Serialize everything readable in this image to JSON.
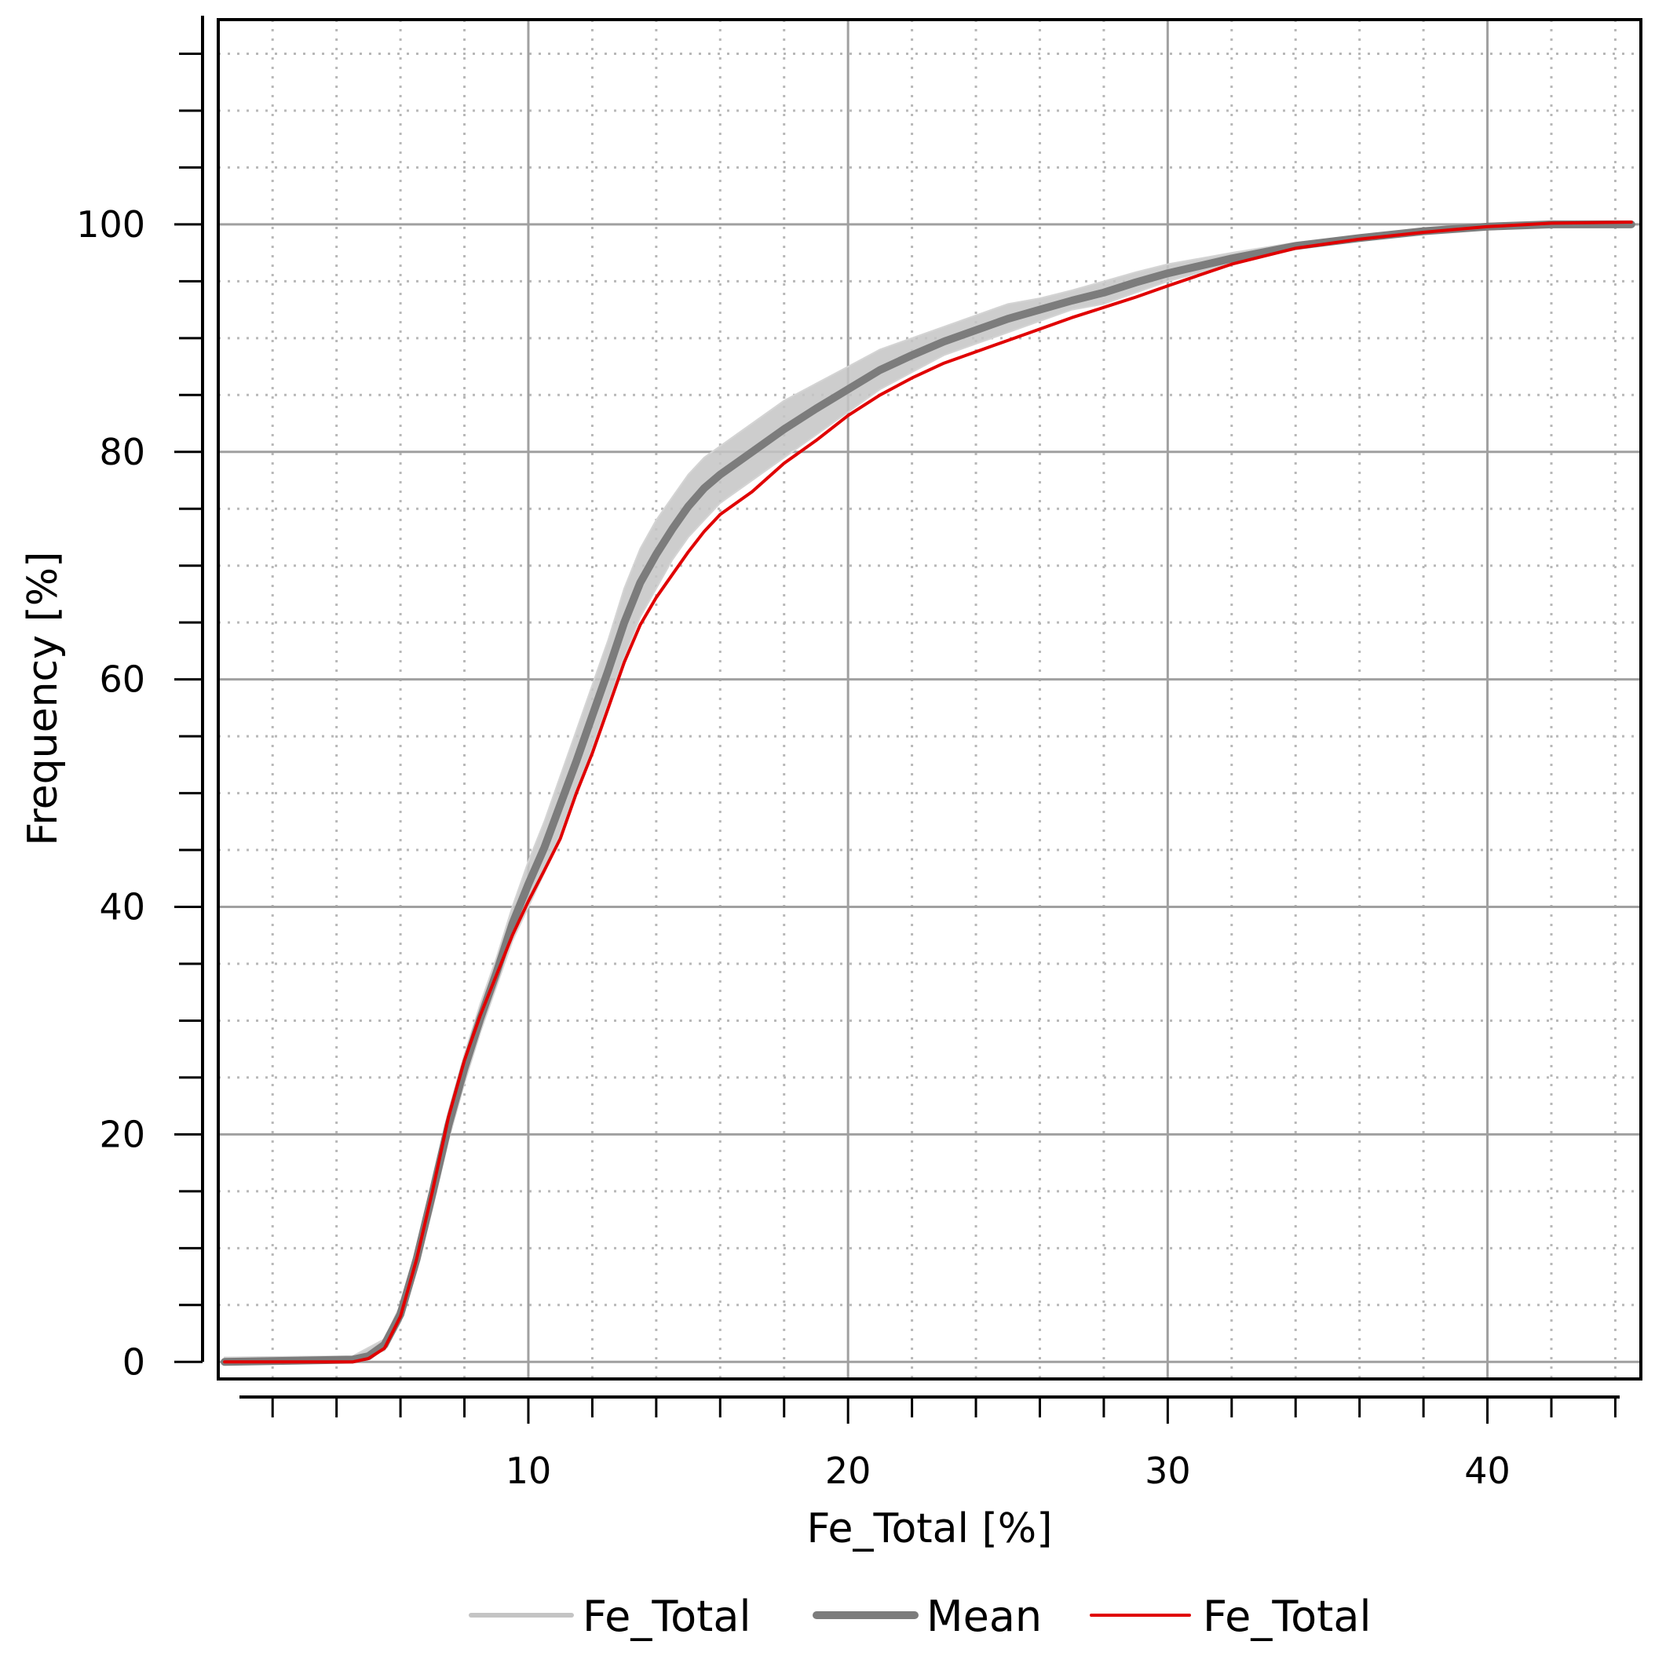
{
  "chart_data": {
    "type": "line",
    "title": "",
    "xlabel": "Fe_Total [%]",
    "ylabel": "Frequency [%]",
    "xlim": [
      0.3,
      44.8
    ],
    "ylim": [
      -1.5,
      118
    ],
    "x_ticks": [
      10,
      20,
      30,
      40
    ],
    "x_tick_labels": [
      "10",
      "20",
      "30",
      "40"
    ],
    "x_minor_step": 2,
    "y_ticks": [
      0,
      20,
      40,
      60,
      80,
      100
    ],
    "y_tick_labels": [
      "0",
      "20",
      "40",
      "60",
      "80",
      "100"
    ],
    "y_minor_step": 5,
    "grid": true,
    "legend_position": "bottom",
    "colors": {
      "band": "#c4c4c4",
      "mean": "#7c7c7c",
      "observed": "#e00000",
      "grid_major": "#a0a0a0",
      "grid_minor": "#b8b8b8",
      "axis": "#000000"
    },
    "series": [
      {
        "name": "Fe_Total",
        "role": "simulated-band",
        "x": [
          0.5,
          4.5,
          5.5,
          6.0,
          6.5,
          7.0,
          7.5,
          8.0,
          8.5,
          9.0,
          9.5,
          10.0,
          10.5,
          11.0,
          11.5,
          12.0,
          12.5,
          13.0,
          13.5,
          14.0,
          14.5,
          15.0,
          15.5,
          16.0,
          16.5,
          17.0,
          18.0,
          19.0,
          20.0,
          21.0,
          22.0,
          23.0,
          24.0,
          25.0,
          26.0,
          27.0,
          28.0,
          29.0,
          30.0,
          32.0,
          34.0,
          36.0,
          38.0,
          40.0,
          42.0,
          44.5
        ],
        "lower": [
          0.0,
          0.1,
          1.0,
          3.5,
          8.0,
          13.5,
          19.5,
          24.5,
          29.0,
          33.0,
          37.0,
          40.0,
          43.0,
          46.5,
          50.0,
          54.0,
          58.0,
          62.0,
          65.5,
          68.0,
          70.5,
          72.5,
          74.0,
          75.5,
          76.5,
          77.5,
          79.5,
          81.5,
          83.5,
          85.5,
          87.0,
          88.5,
          89.5,
          90.5,
          91.5,
          92.5,
          93.0,
          94.0,
          95.0,
          96.5,
          97.8,
          98.6,
          99.2,
          99.7,
          100.0,
          100.0
        ],
        "upper": [
          0.4,
          0.5,
          2.0,
          5.0,
          10.0,
          16.0,
          22.0,
          27.0,
          31.5,
          35.5,
          40.0,
          44.0,
          47.5,
          51.5,
          55.5,
          59.5,
          63.5,
          68.0,
          71.5,
          74.0,
          76.0,
          78.0,
          79.5,
          80.5,
          81.5,
          82.5,
          84.5,
          86.0,
          87.5,
          89.0,
          90.0,
          91.0,
          92.0,
          93.0,
          93.5,
          94.2,
          95.0,
          95.8,
          96.5,
          97.5,
          98.4,
          99.0,
          99.5,
          99.9,
          100.0,
          100.0
        ]
      },
      {
        "name": "Mean",
        "role": "mean",
        "x": [
          0.5,
          4.5,
          5.0,
          5.5,
          6.0,
          6.5,
          7.0,
          7.5,
          8.0,
          8.5,
          9.0,
          9.5,
          10.0,
          10.5,
          11.0,
          11.5,
          12.0,
          12.5,
          13.0,
          13.5,
          14.0,
          14.5,
          15.0,
          15.5,
          16.0,
          16.5,
          17.0,
          18.0,
          19.0,
          20.0,
          21.0,
          22.0,
          23.0,
          24.0,
          25.0,
          26.0,
          27.0,
          28.0,
          29.0,
          30.0,
          32.0,
          34.0,
          36.0,
          38.0,
          40.0,
          42.0,
          44.5
        ],
        "y": [
          0.0,
          0.2,
          0.5,
          1.5,
          4.2,
          9.0,
          14.8,
          20.8,
          25.8,
          30.2,
          34.2,
          38.5,
          42.0,
          45.2,
          49.0,
          52.8,
          56.8,
          60.8,
          65.0,
          68.5,
          71.0,
          73.2,
          75.2,
          76.8,
          78.0,
          79.0,
          80.0,
          82.0,
          83.8,
          85.5,
          87.2,
          88.5,
          89.7,
          90.7,
          91.7,
          92.5,
          93.3,
          94.0,
          94.9,
          95.7,
          97.0,
          98.1,
          98.8,
          99.4,
          99.8,
          100.0,
          100.0
        ]
      },
      {
        "name": "Fe_Total",
        "role": "observed",
        "x": [
          0.5,
          4.5,
          5.0,
          5.5,
          6.0,
          6.5,
          7.0,
          7.5,
          8.0,
          8.5,
          9.0,
          9.5,
          10.0,
          10.5,
          11.0,
          11.5,
          12.0,
          12.5,
          13.0,
          13.5,
          14.0,
          14.5,
          15.0,
          15.5,
          16.0,
          16.5,
          17.0,
          18.0,
          19.0,
          20.0,
          21.0,
          22.0,
          23.0,
          24.0,
          25.0,
          26.0,
          27.0,
          28.0,
          29.0,
          30.0,
          32.0,
          34.0,
          36.0,
          38.0,
          40.0,
          42.0,
          44.5
        ],
        "y": [
          0.0,
          0.0,
          0.3,
          1.2,
          4.0,
          9.0,
          15.0,
          21.5,
          26.5,
          30.5,
          34.0,
          37.5,
          40.5,
          43.2,
          46.0,
          50.0,
          53.5,
          57.5,
          61.5,
          64.8,
          67.2,
          69.2,
          71.2,
          73.0,
          74.5,
          75.5,
          76.5,
          79.0,
          81.0,
          83.2,
          85.0,
          86.5,
          87.8,
          88.8,
          89.8,
          90.8,
          91.8,
          92.7,
          93.6,
          94.6,
          96.5,
          97.9,
          98.7,
          99.3,
          99.8,
          100.1,
          100.2
        ]
      }
    ]
  },
  "legend": {
    "items": [
      {
        "label": "Fe_Total",
        "color": "#c4c4c4",
        "style": "thin-light-gray"
      },
      {
        "label": "Mean",
        "color": "#7c7c7c",
        "style": "thick-dark-gray"
      },
      {
        "label": "Fe_Total",
        "color": "#e00000",
        "style": "thin-red"
      }
    ]
  }
}
